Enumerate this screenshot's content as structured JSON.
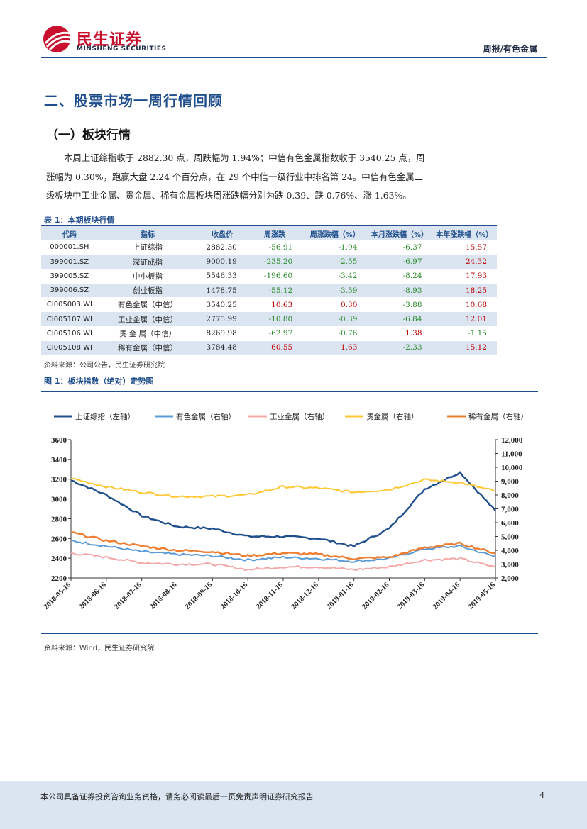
{
  "header": {
    "logo_cn": "民生证券",
    "logo_en": "MINSHENG SECURITIES",
    "category": "周报/有色金属"
  },
  "section_title": "二、股票市场一周行情回顾",
  "subsection_title": "（一）板块行情",
  "paragraph": [
    "本周上证综指收于 2882.30 点，周跌幅为 1.94%；中信有色金属指数收于 3540.25 点，周",
    "涨幅为 0.30%，跑赢大盘 2.24 个百分点，在 29 个中信一级行业中排名第 24。中信有色金属二",
    "级板块中工业金属、贵金属、稀有金属板块周涨跌幅分别为跌 0.39、跌 0.76%、涨 1.63%。"
  ],
  "table": {
    "caption": "表 1：本期板块行情",
    "headers": [
      "代码",
      "指标",
      "收盘价",
      "周涨跌",
      "周涨跌幅（%）",
      "本月涨跌幅（%）",
      "本年涨跌幅（%）"
    ],
    "rows": [
      [
        "000001.SH",
        "上证综指",
        "2882.30",
        "-56.91",
        "-1.94",
        "-6.37",
        "15.57"
      ],
      [
        "399001.SZ",
        "深证成指",
        "9000.19",
        "-235.20",
        "-2.55",
        "-6.97",
        "24.32"
      ],
      [
        "399005.SZ",
        "中小板指",
        "5546.33",
        "-196.60",
        "-3.42",
        "-8.24",
        "17.93"
      ],
      [
        "399006.SZ",
        "创业板指",
        "1478.75",
        "-55.12",
        "-3.59",
        "-8.93",
        "18.25"
      ],
      [
        "CI005003.WI",
        "有色金属（中信）",
        "3540.25",
        "10.63",
        "0.30",
        "-3.88",
        "10.68"
      ],
      [
        "CI005107.WI",
        "工业金属（中信）",
        "2775.99",
        "-10.80",
        "-0.39",
        "-6.84",
        "12.01"
      ],
      [
        "CI005106.WI",
        "贵 金 属（中信）",
        "8269.98",
        "-62.97",
        "-0.76",
        "1.38",
        "-1.15"
      ],
      [
        "CI005108.WI",
        "稀有金属（中信）",
        "3784.48",
        "60.55",
        "1.63",
        "-2.33",
        "15.12"
      ]
    ],
    "source": "资料来源：公司公告，民生证券研究院"
  },
  "figure": {
    "caption": "图 1：板块指数（绝对）走势图",
    "source": "资料来源：Wind，民生证券研究院"
  },
  "chart_data": {
    "type": "line",
    "x": [
      "2018-05-16",
      "2018-06-16",
      "2018-07-16",
      "2018-08-16",
      "2018-09-16",
      "2018-10-16",
      "2018-11-16",
      "2018-12-16",
      "2019-01-16",
      "2019-02-16",
      "2019-03-16",
      "2019-04-16",
      "2019-05-16"
    ],
    "left_axis": {
      "ylim": [
        2200,
        3600
      ],
      "ticks": [
        "2200",
        "2400",
        "2600",
        "2800",
        "3000",
        "3200",
        "3400",
        "3600"
      ]
    },
    "right_axis": {
      "ylim": [
        2000,
        12000
      ],
      "ticks": [
        "2,000",
        "3,000",
        "4,000",
        "5,000",
        "6,000",
        "7,000",
        "8,000",
        "9,000",
        "10,000",
        "11,000",
        "12,000"
      ]
    },
    "legend_position": "top",
    "grid": false,
    "series": [
      {
        "name": "上证综指（左轴）",
        "axis": "left",
        "color": "#1f4e8c",
        "width": 2.4,
        "values": [
          3190,
          3040,
          2830,
          2720,
          2700,
          2620,
          2620,
          2600,
          2520,
          2700,
          3100,
          3270,
          2880
        ]
      },
      {
        "name": "有色金属（右轴）",
        "axis": "right",
        "color": "#5b9bd5",
        "width": 2,
        "values": [
          4700,
          4300,
          3900,
          3700,
          3600,
          3300,
          3500,
          3400,
          3200,
          3400,
          4100,
          4300,
          3540
        ]
      },
      {
        "name": "工业金属（右轴）",
        "axis": "right",
        "color": "#f4a7a7",
        "width": 2,
        "values": [
          3800,
          3500,
          3100,
          3000,
          3000,
          2600,
          2800,
          2800,
          2600,
          2800,
          3300,
          3400,
          2780
        ]
      },
      {
        "name": "贵金属（右轴）",
        "axis": "right",
        "color": "#ffc733",
        "width": 2,
        "values": [
          9200,
          8600,
          8200,
          7900,
          7900,
          8000,
          8600,
          8500,
          8200,
          8400,
          9100,
          8900,
          8270
        ]
      },
      {
        "name": "稀有金属（右轴）",
        "axis": "right",
        "color": "#ed7d31",
        "width": 2.4,
        "values": [
          5300,
          4700,
          4300,
          4000,
          3900,
          3600,
          3800,
          3700,
          3400,
          3500,
          4200,
          4500,
          3780
        ]
      }
    ]
  },
  "footer": {
    "disclaimer": "本公司具备证券投资咨询业务资格，请务必阅读最后一页免责声明证券研究报告",
    "page": "4"
  }
}
